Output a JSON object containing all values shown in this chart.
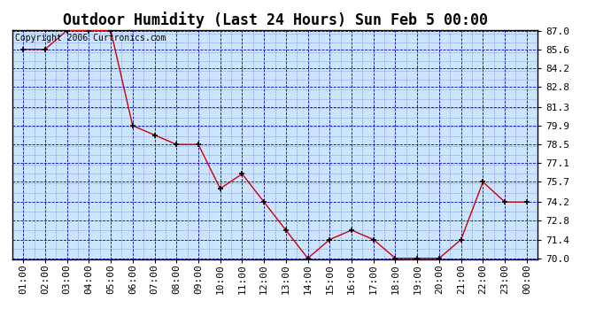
{
  "title": "Outdoor Humidity (Last 24 Hours) Sun Feb 5 00:00",
  "copyright_text": "Copyright 2006 Curtronics.com",
  "x_labels": [
    "01:00",
    "02:00",
    "03:00",
    "04:00",
    "05:00",
    "06:00",
    "07:00",
    "08:00",
    "09:00",
    "10:00",
    "11:00",
    "12:00",
    "13:00",
    "14:00",
    "15:00",
    "16:00",
    "17:00",
    "18:00",
    "19:00",
    "20:00",
    "21:00",
    "22:00",
    "23:00",
    "00:00"
  ],
  "x_values": [
    1,
    2,
    3,
    4,
    5,
    6,
    7,
    8,
    9,
    10,
    11,
    12,
    13,
    14,
    15,
    16,
    17,
    18,
    19,
    20,
    21,
    22,
    23,
    24
  ],
  "y_values": [
    85.6,
    85.6,
    87.0,
    87.0,
    87.0,
    79.9,
    79.2,
    78.5,
    78.5,
    75.2,
    76.3,
    74.2,
    72.1,
    70.0,
    71.4,
    72.1,
    71.4,
    70.0,
    70.0,
    70.0,
    71.4,
    75.7,
    74.2,
    74.2
  ],
  "y_ticks": [
    70.0,
    71.4,
    72.8,
    74.2,
    75.7,
    77.1,
    78.5,
    79.9,
    81.3,
    82.8,
    84.2,
    85.6,
    87.0
  ],
  "y_tick_labels": [
    "70.0",
    "71.4",
    "72.8",
    "74.2",
    "75.7",
    "77.1",
    "78.5",
    "79.9",
    "81.3",
    "82.8",
    "84.2",
    "85.6",
    "87.0"
  ],
  "y_min": 70.0,
  "y_max": 87.0,
  "line_color": "#cc0000",
  "marker_color": "#000000",
  "plot_bg_color": "#cce5ff",
  "fig_bg_color": "#ffffff",
  "grid_major_color": "#0000bb",
  "grid_minor_color": "#6666cc",
  "title_fontsize": 12,
  "tick_fontsize": 8,
  "copyright_fontsize": 7
}
